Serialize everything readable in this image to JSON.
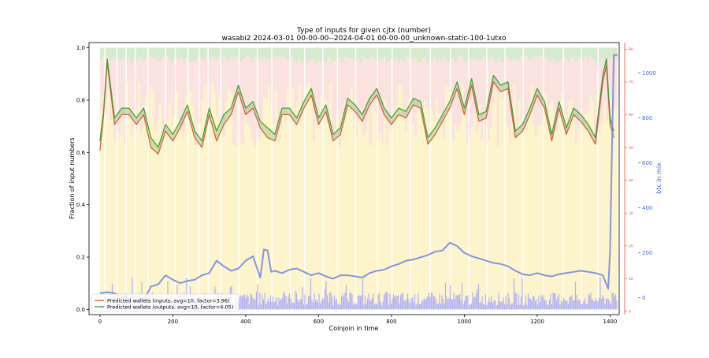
{
  "chart_data": {
    "type": "line",
    "title": "Type of inputs for given cjtx (number)",
    "subtitle": "wasabi2 2024-03-01 00-00-00--2024-04-01 00-00-00_unknown-static-100-1utxo",
    "xlabel": "Coinjoin in time",
    "ylabel": "Fraction of input numbers",
    "y2label": "btc in mix",
    "xlim": [
      -30,
      1425
    ],
    "ylim": [
      -0.02,
      1.02
    ],
    "y2lim": [
      -75,
      1135
    ],
    "y3lim": [
      -1,
      82
    ],
    "x_ticks": [
      0,
      200,
      400,
      600,
      800,
      1000,
      1200,
      1400
    ],
    "y_ticks": [
      0.0,
      0.2,
      0.4,
      0.6,
      0.8,
      1.0
    ],
    "y2_ticks": [
      0,
      200,
      400,
      600,
      800,
      1000
    ],
    "y3_ticks": [
      0,
      10,
      20,
      30,
      40,
      50,
      60,
      70,
      80
    ],
    "grid": false,
    "legend_position": "lower-left",
    "colors": {
      "inputs": "#e8503a",
      "outputs": "#3f9b35",
      "btc_in_mix": "#7d8ee0",
      "btc_axis": "#4169e1",
      "wallet_axis": "#e8503a",
      "band_fresh": "#fdf1c0",
      "band_remix": "#f9d9d6",
      "band_top": "#cfe8c8",
      "band_bottom": "#b0b0f5"
    },
    "series": [
      {
        "name": "Predicted wallets (inputs, avg=10, factor=3.96)",
        "axis": "y3",
        "x": [
          0,
          10,
          20,
          40,
          60,
          80,
          100,
          120,
          140,
          160,
          180,
          200,
          220,
          240,
          260,
          280,
          300,
          320,
          340,
          360,
          380,
          400,
          420,
          440,
          460,
          480,
          500,
          520,
          540,
          560,
          580,
          600,
          620,
          640,
          660,
          680,
          700,
          720,
          740,
          760,
          780,
          800,
          820,
          840,
          860,
          880,
          900,
          920,
          940,
          960,
          980,
          1000,
          1020,
          1040,
          1060,
          1080,
          1100,
          1120,
          1140,
          1160,
          1180,
          1200,
          1220,
          1240,
          1260,
          1280,
          1300,
          1320,
          1340,
          1360,
          1380,
          1390,
          1400,
          1410
        ],
        "values": [
          49,
          60,
          76,
          57,
          60,
          60,
          57,
          60,
          50,
          48,
          55,
          52,
          56,
          61,
          53,
          50,
          60,
          52,
          57,
          60,
          67,
          60,
          62,
          56,
          53,
          52,
          60,
          60,
          57,
          62,
          66,
          57,
          61,
          52,
          54,
          63,
          61,
          58,
          63,
          66,
          60,
          57,
          60,
          59,
          63,
          62,
          51,
          54,
          58,
          62,
          68,
          60,
          69,
          58,
          59,
          70,
          67,
          68,
          53,
          55,
          60,
          66,
          62,
          52,
          62,
          54,
          60,
          58,
          55,
          51,
          70,
          75,
          57,
          53
        ]
      },
      {
        "name": "Predicted wallets (outputs, avg=10, factor=4.05)",
        "axis": "y3",
        "x": [
          0,
          10,
          20,
          40,
          60,
          80,
          100,
          120,
          140,
          160,
          180,
          200,
          220,
          240,
          260,
          280,
          300,
          320,
          340,
          360,
          380,
          400,
          420,
          440,
          460,
          480,
          500,
          520,
          540,
          560,
          580,
          600,
          620,
          640,
          660,
          680,
          700,
          720,
          740,
          760,
          780,
          800,
          820,
          840,
          860,
          880,
          900,
          920,
          940,
          960,
          980,
          1000,
          1020,
          1040,
          1060,
          1080,
          1100,
          1120,
          1140,
          1160,
          1180,
          1200,
          1220,
          1240,
          1260,
          1280,
          1300,
          1320,
          1340,
          1360,
          1380,
          1390,
          1400,
          1410
        ],
        "values": [
          52,
          61,
          77,
          59,
          62,
          62,
          59,
          62,
          53,
          50,
          57,
          54,
          58,
          63,
          55,
          52,
          62,
          55,
          60,
          62,
          69,
          62,
          64,
          58,
          56,
          54,
          62,
          62,
          59,
          64,
          68,
          59,
          63,
          54,
          56,
          65,
          63,
          60,
          65,
          68,
          62,
          59,
          62,
          61,
          65,
          64,
          53,
          56,
          60,
          64,
          70,
          62,
          71,
          60,
          61,
          72,
          69,
          70,
          55,
          57,
          62,
          68,
          64,
          54,
          64,
          56,
          62,
          60,
          57,
          53,
          72,
          77,
          59,
          55
        ]
      },
      {
        "name": "btc in mix",
        "axis": "y2",
        "x": [
          0,
          20,
          40,
          60,
          80,
          100,
          120,
          140,
          160,
          180,
          200,
          220,
          240,
          260,
          280,
          300,
          320,
          340,
          360,
          380,
          400,
          420,
          440,
          450,
          460,
          470,
          480,
          500,
          520,
          540,
          560,
          580,
          600,
          620,
          640,
          660,
          680,
          700,
          720,
          740,
          760,
          780,
          800,
          820,
          840,
          860,
          880,
          900,
          920,
          940,
          960,
          980,
          1000,
          1020,
          1040,
          1060,
          1080,
          1100,
          1120,
          1140,
          1160,
          1180,
          1200,
          1220,
          1240,
          1260,
          1280,
          1300,
          1320,
          1340,
          1360,
          1380,
          1390,
          1395,
          1400,
          1410,
          1420
        ],
        "values": [
          20,
          25,
          20,
          5,
          0,
          5,
          -10,
          50,
          60,
          100,
          80,
          65,
          75,
          80,
          100,
          110,
          165,
          140,
          120,
          130,
          165,
          185,
          90,
          215,
          210,
          115,
          120,
          110,
          125,
          130,
          115,
          100,
          110,
          95,
          85,
          100,
          100,
          95,
          90,
          110,
          120,
          125,
          140,
          150,
          165,
          170,
          180,
          190,
          205,
          210,
          245,
          230,
          200,
          185,
          175,
          165,
          155,
          150,
          140,
          120,
          105,
          100,
          110,
          100,
          95,
          105,
          110,
          115,
          120,
          115,
          110,
          100,
          60,
          40,
          210,
          1080,
          1080
        ]
      }
    ]
  },
  "legend": {
    "entries": [
      "Predicted wallets (inputs, avg=10, factor=3.96)",
      "Predicted wallets (outputs, avg=10, factor=4.05)"
    ]
  }
}
